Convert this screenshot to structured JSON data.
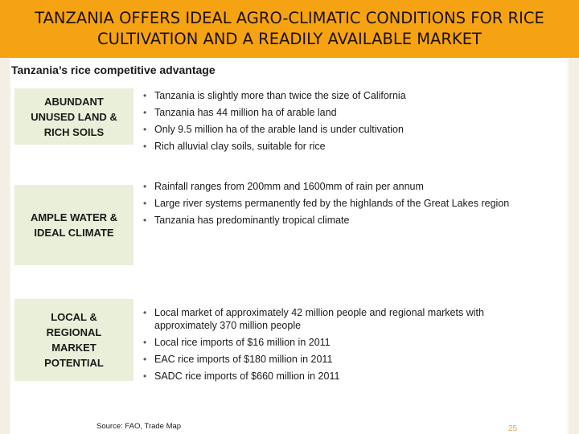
{
  "title": "TANZANIA OFFERS IDEAL AGRO-CLIMATIC CONDITIONS FOR RICE CULTIVATION AND A READILY AVAILABLE MARKET",
  "subtitle": "Tanzania’s rice competitive advantage",
  "sections": [
    {
      "label": "ABUNDANT\nUNUSED LAND &\nRICH SOILS",
      "bullets": [
        "Tanzania is slightly more than twice the size of California",
        "Tanzania has 44 million ha of arable land",
        "Only 9.5 million ha of the arable land is under cultivation",
        "Rich alluvial clay soils, suitable for rice"
      ]
    },
    {
      "label": "AMPLE WATER &\nIDEAL CLIMATE",
      "bullets": [
        "Rainfall ranges from 200mm and 1600mm of rain per annum",
        "Large river systems permanently fed by the highlands of the Great Lakes region",
        "Tanzania has predominantly tropical climate"
      ]
    },
    {
      "label": "LOCAL &\nREGIONAL\nMARKET\nPOTENTIAL",
      "bullets": [
        "Local market of approximately 42 million people and regional markets with approximately 370 million people",
        "Local rice imports of $16 million in 2011",
        "EAC rice imports of $180 million in 2011",
        "SADC rice imports of $660 million in 2011"
      ]
    }
  ],
  "source": "Source: FAO, Trade Map",
  "page_number": "25",
  "colors": {
    "title_bar": "#f6a313",
    "label_box": "#e9efd8",
    "page_number": "#d9a64a"
  }
}
